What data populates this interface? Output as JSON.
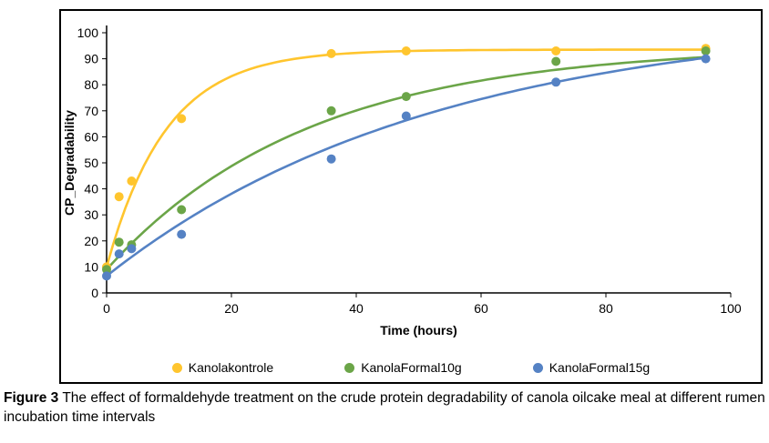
{
  "figure": {
    "caption_bold": "Figure 3",
    "caption_rest": " The effect of formaldehyde treatment on the crude protein degradability of canola oilcake meal at different rumen incubation time intervals"
  },
  "chart_data": {
    "type": "scatter",
    "title": "",
    "xlabel": "Time (hours)",
    "ylabel": "CP_Degradability",
    "xlim": [
      0,
      100
    ],
    "ylim": [
      0,
      100
    ],
    "xticks": [
      0,
      20,
      40,
      60,
      80,
      100
    ],
    "yticks": [
      0,
      10,
      20,
      30,
      40,
      50,
      60,
      70,
      80,
      90,
      100
    ],
    "grid": false,
    "legend_position": "bottom",
    "x": [
      0,
      2,
      4,
      12,
      36,
      48,
      72,
      96
    ],
    "series": [
      {
        "name": "Kanolakontrole",
        "color": "#FFC52E",
        "values": [
          10,
          37,
          43,
          67,
          92,
          93,
          93,
          94
        ],
        "trend_fit": {
          "model": "y = a + b*(1 - exp(-c*t))",
          "a": 10,
          "b": 83.5,
          "c": 0.105
        }
      },
      {
        "name": "KanolaFormal10g",
        "color": "#6BA548",
        "values": [
          9,
          19.5,
          18.5,
          32,
          70,
          75.5,
          89,
          93
        ],
        "trend_fit": {
          "model": "y = a + b*(1 - exp(-c*t))",
          "a": 9,
          "b": 86,
          "c": 0.031
        }
      },
      {
        "name": "KanolaFormal15g",
        "color": "#5582C4",
        "values": [
          6.5,
          15,
          17,
          22.5,
          51.5,
          68,
          81,
          90
        ],
        "trend_fit": {
          "model": "y = a + b*(1 - exp(-c*t))",
          "a": 6.5,
          "b": 100,
          "c": 0.019
        }
      }
    ]
  }
}
